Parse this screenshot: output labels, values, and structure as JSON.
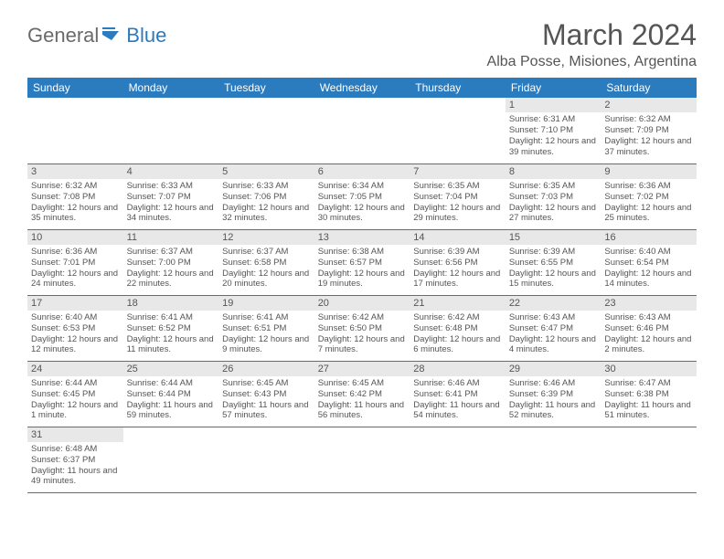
{
  "logo": {
    "text_a": "General",
    "text_b": "Blue"
  },
  "title": "March 2024",
  "location": "Alba Posse, Misiones, Argentina",
  "colors": {
    "header_bg": "#2b7bbf",
    "header_fg": "#ffffff",
    "daynum_bg": "#e8e8e8",
    "text": "#555555",
    "rule": "#2b7bbf"
  },
  "day_headers": [
    "Sunday",
    "Monday",
    "Tuesday",
    "Wednesday",
    "Thursday",
    "Friday",
    "Saturday"
  ],
  "weeks": [
    [
      null,
      null,
      null,
      null,
      null,
      {
        "n": "1",
        "sr": "6:31 AM",
        "ss": "7:10 PM",
        "dl": "12 hours and 39 minutes."
      },
      {
        "n": "2",
        "sr": "6:32 AM",
        "ss": "7:09 PM",
        "dl": "12 hours and 37 minutes."
      }
    ],
    [
      {
        "n": "3",
        "sr": "6:32 AM",
        "ss": "7:08 PM",
        "dl": "12 hours and 35 minutes."
      },
      {
        "n": "4",
        "sr": "6:33 AM",
        "ss": "7:07 PM",
        "dl": "12 hours and 34 minutes."
      },
      {
        "n": "5",
        "sr": "6:33 AM",
        "ss": "7:06 PM",
        "dl": "12 hours and 32 minutes."
      },
      {
        "n": "6",
        "sr": "6:34 AM",
        "ss": "7:05 PM",
        "dl": "12 hours and 30 minutes."
      },
      {
        "n": "7",
        "sr": "6:35 AM",
        "ss": "7:04 PM",
        "dl": "12 hours and 29 minutes."
      },
      {
        "n": "8",
        "sr": "6:35 AM",
        "ss": "7:03 PM",
        "dl": "12 hours and 27 minutes."
      },
      {
        "n": "9",
        "sr": "6:36 AM",
        "ss": "7:02 PM",
        "dl": "12 hours and 25 minutes."
      }
    ],
    [
      {
        "n": "10",
        "sr": "6:36 AM",
        "ss": "7:01 PM",
        "dl": "12 hours and 24 minutes."
      },
      {
        "n": "11",
        "sr": "6:37 AM",
        "ss": "7:00 PM",
        "dl": "12 hours and 22 minutes."
      },
      {
        "n": "12",
        "sr": "6:37 AM",
        "ss": "6:58 PM",
        "dl": "12 hours and 20 minutes."
      },
      {
        "n": "13",
        "sr": "6:38 AM",
        "ss": "6:57 PM",
        "dl": "12 hours and 19 minutes."
      },
      {
        "n": "14",
        "sr": "6:39 AM",
        "ss": "6:56 PM",
        "dl": "12 hours and 17 minutes."
      },
      {
        "n": "15",
        "sr": "6:39 AM",
        "ss": "6:55 PM",
        "dl": "12 hours and 15 minutes."
      },
      {
        "n": "16",
        "sr": "6:40 AM",
        "ss": "6:54 PM",
        "dl": "12 hours and 14 minutes."
      }
    ],
    [
      {
        "n": "17",
        "sr": "6:40 AM",
        "ss": "6:53 PM",
        "dl": "12 hours and 12 minutes."
      },
      {
        "n": "18",
        "sr": "6:41 AM",
        "ss": "6:52 PM",
        "dl": "12 hours and 11 minutes."
      },
      {
        "n": "19",
        "sr": "6:41 AM",
        "ss": "6:51 PM",
        "dl": "12 hours and 9 minutes."
      },
      {
        "n": "20",
        "sr": "6:42 AM",
        "ss": "6:50 PM",
        "dl": "12 hours and 7 minutes."
      },
      {
        "n": "21",
        "sr": "6:42 AM",
        "ss": "6:48 PM",
        "dl": "12 hours and 6 minutes."
      },
      {
        "n": "22",
        "sr": "6:43 AM",
        "ss": "6:47 PM",
        "dl": "12 hours and 4 minutes."
      },
      {
        "n": "23",
        "sr": "6:43 AM",
        "ss": "6:46 PM",
        "dl": "12 hours and 2 minutes."
      }
    ],
    [
      {
        "n": "24",
        "sr": "6:44 AM",
        "ss": "6:45 PM",
        "dl": "12 hours and 1 minute."
      },
      {
        "n": "25",
        "sr": "6:44 AM",
        "ss": "6:44 PM",
        "dl": "11 hours and 59 minutes."
      },
      {
        "n": "26",
        "sr": "6:45 AM",
        "ss": "6:43 PM",
        "dl": "11 hours and 57 minutes."
      },
      {
        "n": "27",
        "sr": "6:45 AM",
        "ss": "6:42 PM",
        "dl": "11 hours and 56 minutes."
      },
      {
        "n": "28",
        "sr": "6:46 AM",
        "ss": "6:41 PM",
        "dl": "11 hours and 54 minutes."
      },
      {
        "n": "29",
        "sr": "6:46 AM",
        "ss": "6:39 PM",
        "dl": "11 hours and 52 minutes."
      },
      {
        "n": "30",
        "sr": "6:47 AM",
        "ss": "6:38 PM",
        "dl": "11 hours and 51 minutes."
      }
    ],
    [
      {
        "n": "31",
        "sr": "6:48 AM",
        "ss": "6:37 PM",
        "dl": "11 hours and 49 minutes."
      },
      null,
      null,
      null,
      null,
      null,
      null
    ]
  ],
  "labels": {
    "sunrise": "Sunrise:",
    "sunset": "Sunset:",
    "daylight": "Daylight:"
  }
}
